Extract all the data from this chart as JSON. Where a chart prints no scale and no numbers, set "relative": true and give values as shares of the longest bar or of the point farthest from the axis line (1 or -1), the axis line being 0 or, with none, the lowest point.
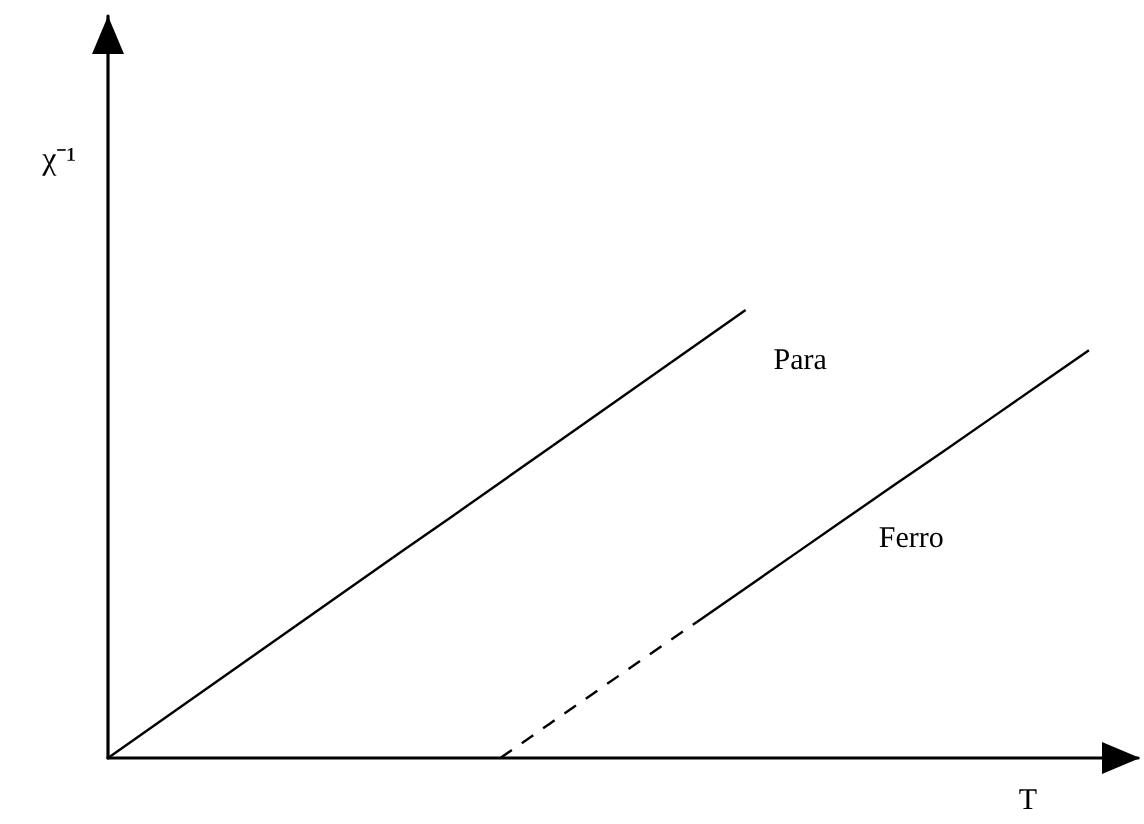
{
  "chart_data": {
    "type": "line",
    "xlabel": "T",
    "ylabel": "χ⁻¹",
    "relative": true,
    "categories": [
      null,
      null,
      null,
      null,
      null,
      null,
      null,
      null,
      null,
      null,
      null,
      null,
      null,
      null,
      null,
      null,
      null,
      null,
      null,
      null,
      null,
      null
    ],
    "series": [
      {
        "name": "Para",
        "color": "#000000",
        "line_style": "solid",
        "values": [
          0,
          0.077,
          0.154,
          0.231,
          0.308,
          0.385,
          0.462,
          0.538,
          0.615,
          0.692,
          0.769,
          0.846,
          0.923,
          1,
          null,
          null,
          null,
          null,
          null,
          null,
          null,
          null
        ]
      },
      {
        "name": "Ferro",
        "color": "#000000",
        "line_style": "solid",
        "values": [
          null,
          null,
          null,
          null,
          null,
          null,
          null,
          null,
          null,
          null,
          null,
          null,
          0.303,
          0.379,
          0.455,
          0.531,
          0.607,
          0.682,
          0.758,
          0.834,
          0.91,
          null
        ]
      },
      {
        "color": "#000000",
        "line_style": "dashed",
        "values": [
          null,
          null,
          null,
          null,
          null,
          null,
          null,
          null,
          0,
          0.076,
          0.152,
          0.228,
          0.303,
          null,
          null,
          null,
          null,
          null,
          null,
          null,
          null,
          null
        ]
      }
    ]
  }
}
